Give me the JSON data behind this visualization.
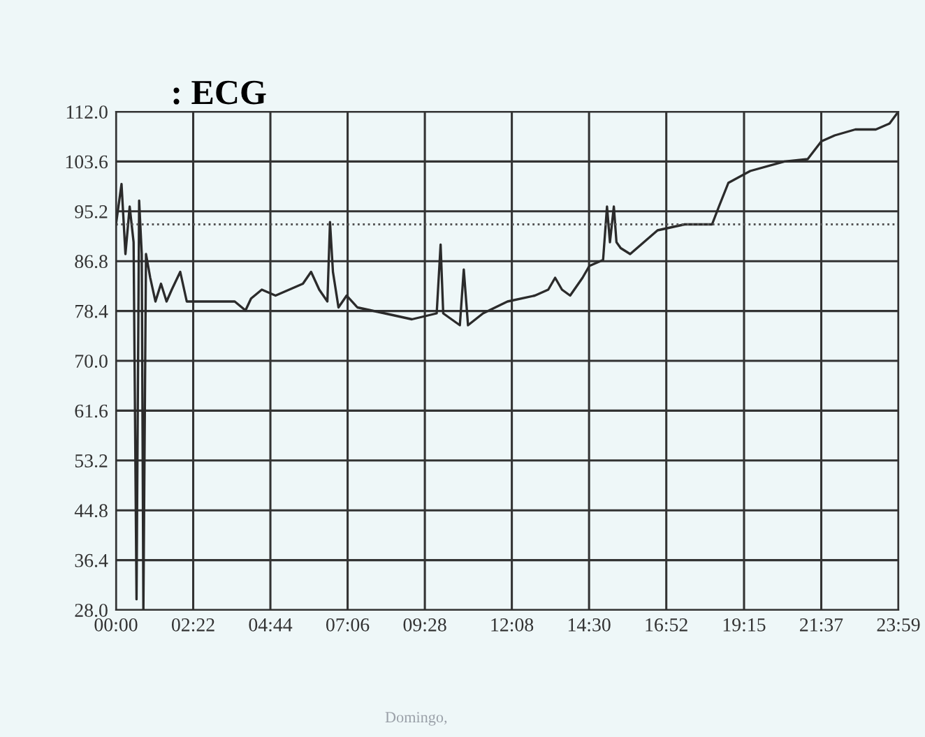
{
  "chart_data": {
    "type": "line",
    "title": ": ECG",
    "annotations": [
      "Domingo,"
    ],
    "x": [
      0,
      0.17,
      0.29,
      0.42,
      0.54,
      0.63,
      0.71,
      0.79,
      0.84,
      0.92,
      1.05,
      1.21,
      1.38,
      1.55,
      1.71,
      1.97,
      2.17,
      2.8,
      3.64,
      3.97,
      4.14,
      4.47,
      4.89,
      5.31,
      5.73,
      5.98,
      6.23,
      6.48,
      6.56,
      6.65,
      6.82,
      7.07,
      7.4,
      8.24,
      9.07,
      9.83,
      9.95,
      10.03,
      10.54,
      10.66,
      10.79,
      11.25,
      12.0,
      12.84,
      13.25,
      13.46,
      13.67,
      13.92,
      14.3,
      14.51,
      14.93,
      15.05,
      15.14,
      15.26,
      15.34,
      15.47,
      15.76,
      16.18,
      16.6,
      17.43,
      18.27,
      18.48,
      18.77,
      19.44,
      20.49,
      21.2,
      21.62,
      22.03,
      22.66,
      23.29,
      23.71,
      23.98
    ],
    "series": [
      {
        "color": "#2b2b2b",
        "values": [
          93,
          99.8,
          88,
          96,
          90,
          29.8,
          97,
          88,
          28,
          88,
          84,
          80,
          83,
          80,
          82,
          85,
          80,
          80,
          80,
          78.5,
          80.5,
          82,
          81,
          82,
          83,
          85,
          82,
          80,
          93.4,
          85,
          79,
          81,
          79,
          78,
          77,
          78,
          89.6,
          78,
          76,
          85.4,
          76,
          78,
          80,
          81,
          82,
          84,
          82,
          81,
          84,
          86,
          87,
          96,
          90,
          96,
          90,
          89,
          88,
          90,
          92,
          93,
          93,
          96,
          100,
          102,
          103.6,
          104,
          107,
          108,
          109,
          109,
          110,
          112
        ]
      }
    ],
    "xlim": [
      0,
      23.983
    ],
    "xticks": [
      {
        "value": 0,
        "label": "00:00"
      },
      {
        "value": 2.367,
        "label": "02:22"
      },
      {
        "value": 4.733,
        "label": "04:44"
      },
      {
        "value": 7.1,
        "label": "07:06"
      },
      {
        "value": 9.467,
        "label": "09:28"
      },
      {
        "value": 12.133,
        "label": "12:08"
      },
      {
        "value": 14.5,
        "label": "14:30"
      },
      {
        "value": 16.867,
        "label": "16:52"
      },
      {
        "value": 19.25,
        "label": "19:15"
      },
      {
        "value": 21.617,
        "label": "21:37"
      },
      {
        "value": 23.983,
        "label": "23:59"
      }
    ],
    "ylim": [
      28,
      112
    ],
    "yticks": [
      {
        "value": 28,
        "label": "28.0"
      },
      36.4,
      44.8,
      53.2,
      61.6,
      {
        "value": 70,
        "label": "70.0"
      },
      78.4,
      86.8,
      95.2,
      103.6,
      {
        "value": 112,
        "label": "112.0"
      }
    ],
    "ref_lines": [
      {
        "axis": "y",
        "value": 93,
        "line_style": "dotted",
        "color": "#555555"
      }
    ],
    "grid": true,
    "marker": "none",
    "line_style": "solid"
  }
}
